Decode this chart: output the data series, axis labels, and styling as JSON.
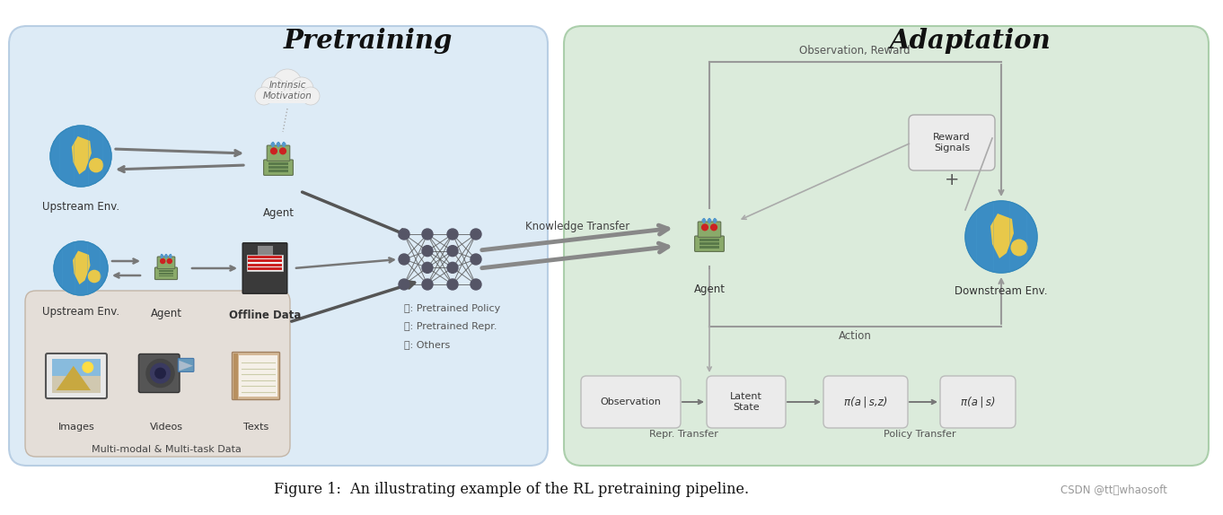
{
  "title": "Figure 1:  An illustrating example of the RL pretraining pipeline.",
  "title_right": "CSDN @tt姐whaosoft",
  "pretraining_title": "Pretraining",
  "adaptation_title": "Adaptation",
  "fig_bg": "#ffffff",
  "left_box_color": "#d8e8f5",
  "right_box_color": "#d5e8d5",
  "multimodal_box_color": "#e5ddd5",
  "arrow_color": "#888888",
  "dark_arrow_color": "#666666",
  "label_upstream_env1": "Upstream Env.",
  "label_agent_top": "Agent",
  "label_upstream_env2": "Upstream Env.",
  "label_agent_mid": "Agent",
  "label_offline_data": "Offline Data",
  "label_images": "Images",
  "label_videos": "Videos",
  "label_texts": "Texts",
  "label_multimodal": "Multi-modal & Multi-task Data",
  "label_intrinsic": "Intrinsic\nMotivation",
  "label_knowledge_transfer": "Knowledge Transfer",
  "label_pretrained_policy": ": Pretrained Policy",
  "label_pretrained_repr": ": Pretrained Repr.",
  "label_others": ": Others",
  "label_observation_reward": "Observation, Reward",
  "label_action": "Action",
  "label_reward_signals": "Reward\nSignals",
  "label_downstream_env": "Downstream Env.",
  "label_agent_right": "Agent",
  "label_observation": "Observation",
  "label_latent_state": "Latent\nState",
  "label_pi_sz": "π(a | s,z)",
  "label_pi_s": "π(a | s)",
  "label_repr_transfer": "Repr. Transfer",
  "label_policy_transfer": "Policy Transfer"
}
